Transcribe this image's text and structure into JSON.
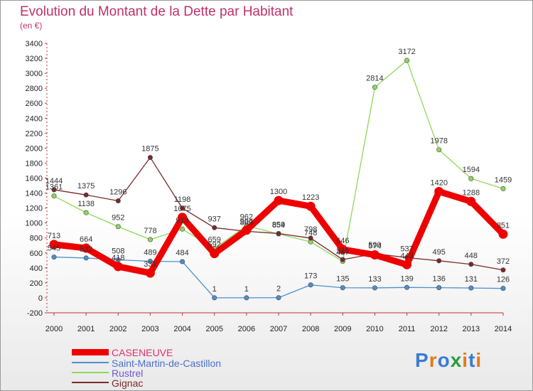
{
  "title": "Evolution du Montant de la Dette par Habitant",
  "subtitle": "(en €)",
  "logo": {
    "text": "Proxiti"
  },
  "chart_data": {
    "type": "line",
    "x": [
      "2000",
      "2001",
      "2002",
      "2003",
      "2004",
      "2005",
      "2006",
      "2007",
      "2008",
      "2009",
      "2010",
      "2011",
      "2012",
      "2013",
      "2014"
    ],
    "ylim": [
      -200,
      3400
    ],
    "yticks": [
      "-200",
      "0",
      "200",
      "400",
      "600",
      "800",
      "1000",
      "1200",
      "1400",
      "1600",
      "1800",
      "2000",
      "2200",
      "2400",
      "2600",
      "2800",
      "3000",
      "3200",
      "3400"
    ],
    "grid": false,
    "legend": "bottom-left",
    "series": [
      {
        "name": "CASENEUVE",
        "color": "#ee0000",
        "values": [
          713,
          664,
          418,
          331,
          1075,
          592,
          904,
          1300,
          1223,
          646,
          574,
          443,
          1420,
          1288,
          851
        ],
        "labels": [
          "713",
          "664",
          "418",
          "331",
          "1075",
          "592",
          "904",
          "1300",
          "1223",
          "646",
          "574",
          "443",
          "1420",
          "1288",
          "851"
        ]
      },
      {
        "name": "Saint-Martin-de-Castillon",
        "color": "#4d8fd0",
        "values": [
          545,
          532,
          508,
          489,
          484,
          1,
          1,
          2,
          173,
          135,
          133,
          139,
          136,
          131,
          126
        ],
        "labels": [
          "545",
          "532",
          "508",
          "489",
          "484",
          "1",
          "1",
          "2",
          "173",
          "135",
          "133",
          "139",
          "136",
          "131",
          "126"
        ]
      },
      {
        "name": "Rustrel",
        "color": "#8ed85a",
        "values": [
          1361,
          1138,
          952,
          778,
          918,
          659,
          962,
          854,
          748,
          487,
          2814,
          3172,
          1978,
          1594,
          1459
        ],
        "labels": [
          "1361",
          "1138",
          "952",
          "778",
          "918",
          "659",
          "962",
          "854",
          "748",
          "487",
          "2814",
          "3172",
          "1978",
          "1594",
          "1459"
        ]
      },
      {
        "name": "Gignac",
        "color": "#7a2a2a",
        "values": [
          1444,
          1375,
          1296,
          1875,
          1198,
          937,
          889,
          859,
          798,
          511,
          590,
          537,
          495,
          448,
          372
        ],
        "labels": [
          "1444",
          "1375",
          "1296",
          "1875",
          "1198",
          "937",
          "889",
          "859",
          "798",
          "511",
          "590",
          "537",
          "495",
          "448",
          "372"
        ]
      }
    ]
  }
}
